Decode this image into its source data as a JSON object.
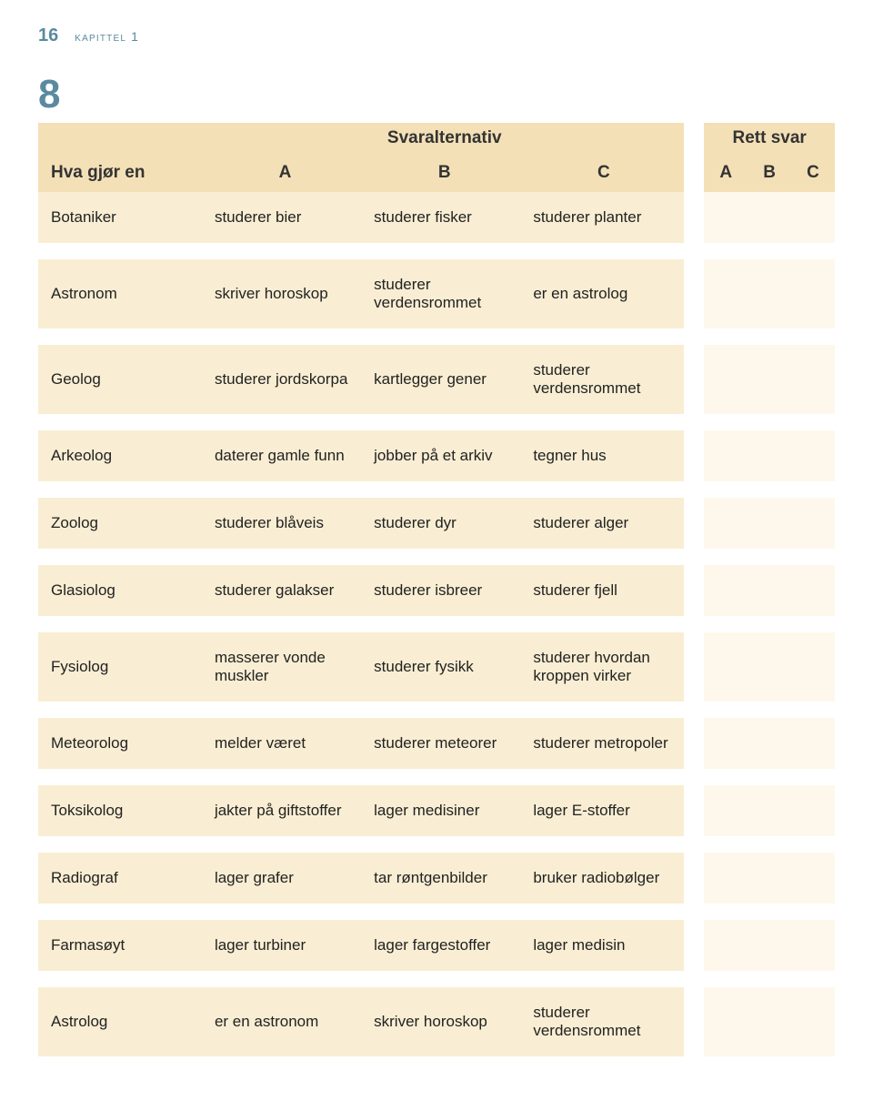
{
  "page_number": "16",
  "chapter_label": "kapittel 1",
  "exercise_number": "8",
  "colors": {
    "header_bg": "#f4e0b7",
    "row_bg": "#f9eed3",
    "answer_bg": "#fdf8eb",
    "text": "#333333",
    "accent": "#5a8aa0"
  },
  "headers": {
    "hva_gjor_en": "Hva gjør en",
    "svaralternativ": "Svaralternativ",
    "rett_svar": "Rett svar",
    "a": "A",
    "b": "B",
    "c": "C"
  },
  "rows": [
    {
      "subject": "Botaniker",
      "a": "studerer bier",
      "b": "studerer fisker",
      "c": "studerer planter"
    },
    {
      "subject": "Astronom",
      "a": "skriver horoskop",
      "b": "studerer verdensrommet",
      "c": "er en astrolog"
    },
    {
      "subject": "Geolog",
      "a": "studerer jordskorpa",
      "b": "kartlegger gener",
      "c": "studerer verdensrommet"
    },
    {
      "subject": "Arkeolog",
      "a": "daterer gamle funn",
      "b": "jobber på et arkiv",
      "c": "tegner hus"
    },
    {
      "subject": "Zoolog",
      "a": "studerer blåveis",
      "b": "studerer dyr",
      "c": "studerer alger"
    },
    {
      "subject": "Glasiolog",
      "a": "studerer galakser",
      "b": "studerer isbreer",
      "c": "studerer fjell"
    },
    {
      "subject": "Fysiolog",
      "a": "masserer vonde muskler",
      "b": "studerer fysikk",
      "c": "studerer hvordan kroppen virker"
    },
    {
      "subject": "Meteorolog",
      "a": "melder været",
      "b": "studerer meteorer",
      "c": "studerer metropoler"
    },
    {
      "subject": "Toksikolog",
      "a": "jakter på giftstoffer",
      "b": "lager medisiner",
      "c": "lager E-stoffer"
    },
    {
      "subject": "Radiograf",
      "a": "lager grafer",
      "b": "tar røntgenbilder",
      "c": "bruker radiobølger"
    },
    {
      "subject": "Farmasøyt",
      "a": "lager turbiner",
      "b": "lager fargestoffer",
      "c": "lager medisin"
    },
    {
      "subject": "Astrolog",
      "a": "er en astronom",
      "b": "skriver horoskop",
      "c": "studerer verdensrommet"
    }
  ]
}
